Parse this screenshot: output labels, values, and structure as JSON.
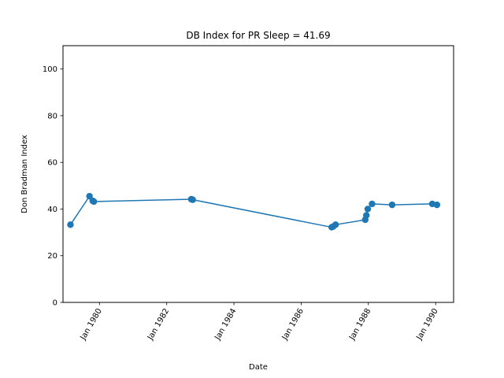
{
  "chart_data": {
    "type": "line",
    "title": "DB Index for PR Sleep = 41.69",
    "xlabel": "Date",
    "ylabel": "Don Bradman Index",
    "ylim": [
      0,
      110
    ],
    "xlim": [
      "1978-12-01",
      "1990-07-15"
    ],
    "x_ticks": [
      {
        "date": "1980-01-01",
        "label": "Jan 1980"
      },
      {
        "date": "1982-01-01",
        "label": "Jan 1982"
      },
      {
        "date": "1984-01-01",
        "label": "Jan 1984"
      },
      {
        "date": "1986-01-01",
        "label": "Jan 1986"
      },
      {
        "date": "1988-01-01",
        "label": "Jan 1988"
      },
      {
        "date": "1990-01-01",
        "label": "Jan 1990"
      }
    ],
    "y_ticks": [
      0,
      20,
      40,
      60,
      80,
      100
    ],
    "grid": false,
    "color": "#1f77b4",
    "series": [
      {
        "points": [
          {
            "x": "1979-02-20",
            "y": 33.3
          },
          {
            "x": "1979-09-15",
            "y": 45.5
          },
          {
            "x": "1979-10-20",
            "y": 43.5
          },
          {
            "x": "1979-11-01",
            "y": 43.2
          },
          {
            "x": "1982-09-25",
            "y": 44.2
          },
          {
            "x": "1982-10-10",
            "y": 44.0
          },
          {
            "x": "1986-11-28",
            "y": 32.2
          },
          {
            "x": "1986-12-15",
            "y": 32.5
          },
          {
            "x": "1987-01-10",
            "y": 33.3
          },
          {
            "x": "1987-11-28",
            "y": 35.4
          },
          {
            "x": "1987-12-10",
            "y": 37.3
          },
          {
            "x": "1987-12-25",
            "y": 40.0
          },
          {
            "x": "1988-02-10",
            "y": 42.2
          },
          {
            "x": "1988-09-15",
            "y": 41.8
          },
          {
            "x": "1989-11-25",
            "y": 42.2
          },
          {
            "x": "1990-01-15",
            "y": 41.8
          }
        ]
      }
    ]
  }
}
